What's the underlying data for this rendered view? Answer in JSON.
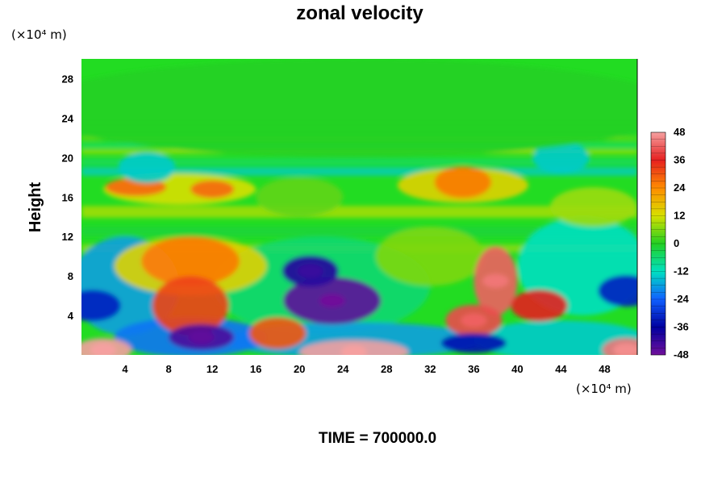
{
  "chart_data": {
    "type": "heatmap",
    "title": "zonal velocity",
    "ylabel": "Height",
    "xlabel": "",
    "y_unit": "(×10⁴ m)",
    "x_unit": "(×10⁴ m)",
    "xlim": [
      0,
      51
    ],
    "ylim": [
      0,
      30
    ],
    "x_ticks": [
      4,
      8,
      12,
      16,
      20,
      24,
      28,
      32,
      36,
      40,
      44,
      48
    ],
    "y_ticks": [
      4,
      8,
      12,
      16,
      20,
      24,
      28
    ],
    "colorbar": {
      "range": [
        -48,
        48
      ],
      "ticks": [
        48,
        36,
        24,
        12,
        0,
        -12,
        -24,
        -36,
        -48
      ],
      "colors": [
        "#f5a0a0",
        "#e62020",
        "#ff8c00",
        "#d8e000",
        "#22d022",
        "#00e0c0",
        "#1060ff",
        "#0000a0",
        "#70109a"
      ]
    },
    "features": [
      {
        "x": 2,
        "y": 0.5,
        "value": 48
      },
      {
        "x": 25,
        "y": 0.3,
        "value": 48
      },
      {
        "x": 50,
        "y": 0.5,
        "value": 44
      },
      {
        "x": 10,
        "y": 9.5,
        "value": 26
      },
      {
        "x": 10,
        "y": 5,
        "value": 32
      },
      {
        "x": 5,
        "y": 17,
        "value": 28
      },
      {
        "x": 12,
        "y": 16.8,
        "value": 28
      },
      {
        "x": 35,
        "y": 17.5,
        "value": 26
      },
      {
        "x": 38,
        "y": 7.5,
        "value": 42
      },
      {
        "x": 42,
        "y": 5,
        "value": 36
      },
      {
        "x": 36,
        "y": 3.5,
        "value": 40
      },
      {
        "x": 18,
        "y": 2.2,
        "value": 30
      },
      {
        "x": 23,
        "y": 5.5,
        "value": -46
      },
      {
        "x": 11,
        "y": 1.8,
        "value": -44
      },
      {
        "x": 1,
        "y": 5,
        "value": -32
      },
      {
        "x": 36,
        "y": 1.2,
        "value": -34
      },
      {
        "x": 50,
        "y": 6.5,
        "value": -32
      },
      {
        "x": 21,
        "y": 8.5,
        "value": -40
      },
      {
        "x": 6,
        "y": 19,
        "value": -14
      },
      {
        "x": 44,
        "y": 20,
        "value": -14
      },
      {
        "x": 25,
        "y": 25,
        "value": 0
      }
    ]
  },
  "footer": {
    "time_label": "TIME = 700000.0"
  }
}
